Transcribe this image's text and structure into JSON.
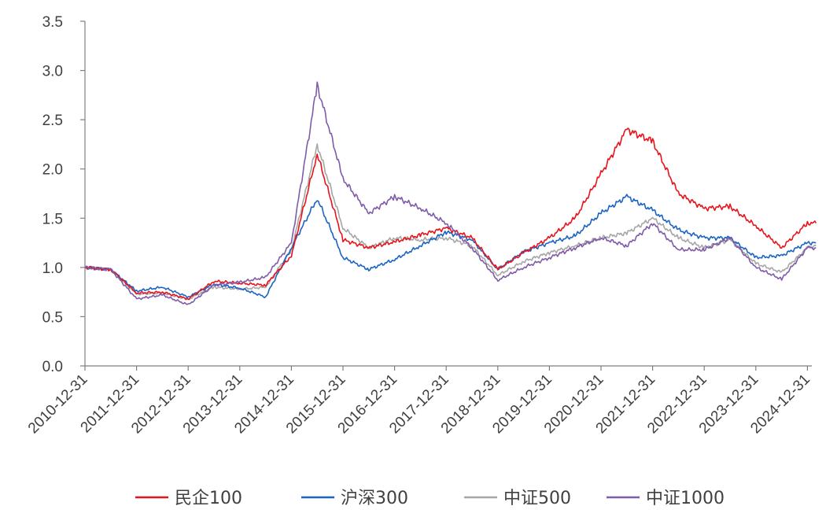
{
  "chart_data": {
    "type": "line",
    "title": "",
    "xlabel": "",
    "ylabel": "",
    "ylim": [
      0,
      3.5
    ],
    "yticks": [
      "0.0",
      "0.5",
      "1.0",
      "1.5",
      "2.0",
      "2.5",
      "3.0",
      "3.5"
    ],
    "xticks": [
      "2010-12-31",
      "2011-12-31",
      "2012-12-31",
      "2013-12-31",
      "2014-12-31",
      "2015-12-31",
      "2016-12-31",
      "2017-12-31",
      "2018-12-31",
      "2019-12-31",
      "2020-12-31",
      "2021-12-31",
      "2022-12-31",
      "2023-12-31",
      "2024-12-31"
    ],
    "grid": false,
    "legend_position": "bottom",
    "x": [
      "2010-12",
      "2011-06",
      "2011-12",
      "2012-06",
      "2012-12",
      "2013-06",
      "2013-12",
      "2014-06",
      "2014-12",
      "2015-06",
      "2015-12",
      "2016-06",
      "2016-12",
      "2017-06",
      "2017-12",
      "2018-06",
      "2018-12",
      "2019-06",
      "2019-12",
      "2020-06",
      "2020-12",
      "2021-06",
      "2021-12",
      "2022-06",
      "2022-12",
      "2023-06",
      "2023-12",
      "2024-06",
      "2024-12",
      "2025-02"
    ],
    "series": [
      {
        "name": "民企100",
        "color": "#E8141C",
        "values": [
          1.0,
          0.98,
          0.74,
          0.75,
          0.68,
          0.86,
          0.84,
          0.82,
          1.12,
          2.15,
          1.28,
          1.2,
          1.26,
          1.33,
          1.4,
          1.3,
          0.98,
          1.15,
          1.3,
          1.5,
          1.95,
          2.4,
          2.28,
          1.75,
          1.6,
          1.62,
          1.42,
          1.2,
          1.45,
          1.45
        ]
      },
      {
        "name": "沪深300",
        "color": "#1A64C4",
        "values": [
          1.0,
          0.98,
          0.76,
          0.8,
          0.7,
          0.83,
          0.79,
          0.7,
          1.2,
          1.7,
          1.1,
          0.98,
          1.08,
          1.22,
          1.36,
          1.28,
          0.98,
          1.16,
          1.25,
          1.32,
          1.55,
          1.72,
          1.58,
          1.38,
          1.3,
          1.3,
          1.1,
          1.12,
          1.25,
          1.25
        ]
      },
      {
        "name": "中证500",
        "color": "#A6A6A6",
        "values": [
          1.0,
          0.98,
          0.73,
          0.74,
          0.68,
          0.8,
          0.78,
          0.8,
          1.18,
          2.25,
          1.4,
          1.2,
          1.3,
          1.28,
          1.3,
          1.22,
          0.92,
          1.06,
          1.15,
          1.22,
          1.3,
          1.35,
          1.5,
          1.3,
          1.2,
          1.28,
          1.04,
          0.95,
          1.2,
          1.22
        ]
      },
      {
        "name": "中证1000",
        "color": "#7F5BA8",
        "values": [
          1.0,
          0.98,
          0.68,
          0.72,
          0.62,
          0.82,
          0.85,
          0.9,
          1.25,
          2.85,
          1.9,
          1.55,
          1.72,
          1.6,
          1.45,
          1.2,
          0.87,
          1.0,
          1.1,
          1.2,
          1.3,
          1.22,
          1.45,
          1.18,
          1.18,
          1.3,
          1.0,
          0.88,
          1.2,
          1.2
        ]
      }
    ]
  }
}
